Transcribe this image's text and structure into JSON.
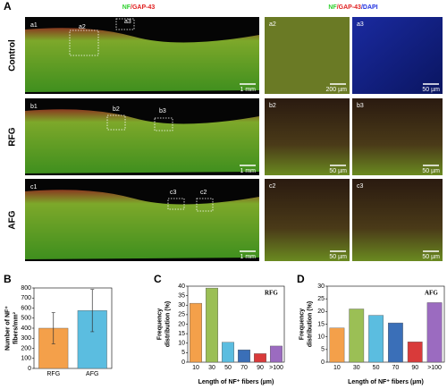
{
  "panel_a": {
    "label": "A",
    "header_left": [
      "NF",
      "/GAP-43"
    ],
    "header_right": [
      "NF",
      "/GAP-43",
      "/DAPI"
    ],
    "rows": [
      {
        "name": "Control",
        "large": {
          "labels": [
            "a1",
            "a2",
            "a3"
          ],
          "scale": "1 mm"
        },
        "small": [
          {
            "label": "a2",
            "scale": "200 µm"
          },
          {
            "label": "a3",
            "scale": "50 µm"
          }
        ]
      },
      {
        "name": "RFG",
        "large": {
          "labels": [
            "b1",
            "b2",
            "b3"
          ],
          "scale": "1 mm"
        },
        "small": [
          {
            "label": "b2",
            "scale": "50 µm"
          },
          {
            "label": "b3",
            "scale": "50 µm"
          }
        ]
      },
      {
        "name": "AFG",
        "large": {
          "labels": [
            "c1",
            "c3",
            "c2"
          ],
          "scale": "1 mm"
        },
        "small": [
          {
            "label": "c2",
            "scale": "50 µm"
          },
          {
            "label": "c3",
            "scale": "50 µm"
          }
        ]
      }
    ]
  },
  "chart_data": [
    {
      "type": "bar",
      "panel": "B",
      "ylabel": [
        "Number of NF⁺",
        "fibers/mm²"
      ],
      "categories": [
        "RFG",
        "AFG"
      ],
      "values": [
        400,
        575
      ],
      "errors": [
        155,
        210
      ],
      "colors": [
        "#f4a04a",
        "#5bbde0"
      ],
      "ylim": [
        0,
        800
      ],
      "yticks": [
        0,
        100,
        200,
        300,
        400,
        500,
        600,
        700,
        800
      ]
    },
    {
      "type": "bar",
      "panel": "C",
      "annotation": "RFG",
      "ylabel": [
        "Frequency",
        "distribution (%)"
      ],
      "xlabel": "Length of NF⁺ fibers (µm)",
      "categories": [
        "10",
        "30",
        "50",
        "70",
        "90",
        ">100"
      ],
      "values": [
        31,
        39,
        10.5,
        6.5,
        4.5,
        8.5
      ],
      "colors": [
        "#f4a04a",
        "#9bbf55",
        "#5bbde0",
        "#3a6fb8",
        "#d93a3a",
        "#9b6bc0"
      ],
      "ylim": [
        0,
        40
      ],
      "yticks": [
        0,
        5,
        10,
        15,
        20,
        25,
        30,
        35,
        40
      ]
    },
    {
      "type": "bar",
      "panel": "D",
      "annotation": "AFG",
      "ylabel": [
        "Frequency",
        "distribution (%)"
      ],
      "xlabel": "Length of NF⁺ fibers (µm)",
      "categories": [
        "10",
        "30",
        "50",
        "70",
        "90",
        ">100"
      ],
      "values": [
        13.5,
        21,
        18.5,
        15.5,
        8,
        23.5
      ],
      "colors": [
        "#f4a04a",
        "#9bbf55",
        "#5bbde0",
        "#3a6fb8",
        "#d93a3a",
        "#9b6bc0"
      ],
      "ylim": [
        0,
        30
      ],
      "yticks": [
        0,
        5,
        10,
        15,
        20,
        25,
        30
      ]
    }
  ]
}
